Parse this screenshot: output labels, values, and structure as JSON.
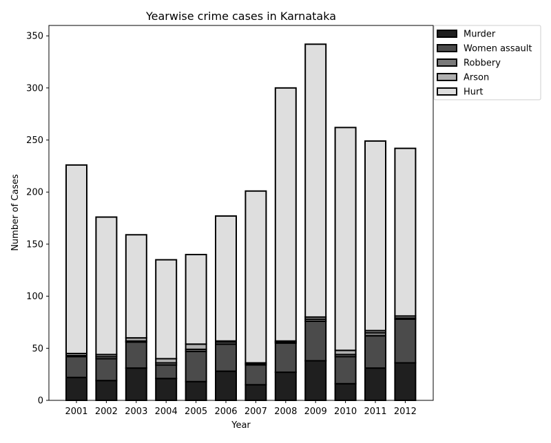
{
  "chart_data": {
    "type": "bar",
    "stacked": true,
    "title": "Yearwise crime cases in Karnataka",
    "xlabel": "Year",
    "ylabel": "Number of Cases",
    "ylim": [
      0,
      360
    ],
    "yticks": [
      0,
      50,
      100,
      150,
      200,
      250,
      300,
      350
    ],
    "grid": false,
    "legend_position": "outside-top-right",
    "categories": [
      "2001",
      "2002",
      "2003",
      "2004",
      "2005",
      "2006",
      "2007",
      "2008",
      "2009",
      "2010",
      "2011",
      "2012"
    ],
    "series": [
      {
        "name": "Murder",
        "color": "#1f1f1f",
        "values": [
          22,
          19,
          31,
          21,
          18,
          28,
          15,
          27,
          38,
          16,
          31,
          36
        ]
      },
      {
        "name": "Women assault",
        "color": "#4b4b4b",
        "values": [
          20,
          21,
          25,
          13,
          29,
          26,
          19,
          28,
          38,
          26,
          31,
          42
        ]
      },
      {
        "name": "Robbery",
        "color": "#7a7a7a",
        "values": [
          1,
          2,
          1,
          2,
          2,
          2,
          1,
          1,
          2,
          2,
          3,
          1
        ]
      },
      {
        "name": "Arson",
        "color": "#b0b0b0",
        "values": [
          2,
          2,
          3,
          4,
          5,
          1,
          1,
          1,
          2,
          4,
          2,
          2
        ]
      },
      {
        "name": "Hurt",
        "color": "#dedede",
        "values": [
          181,
          132,
          99,
          95,
          86,
          120,
          165,
          243,
          262,
          214,
          182,
          161
        ]
      }
    ]
  }
}
